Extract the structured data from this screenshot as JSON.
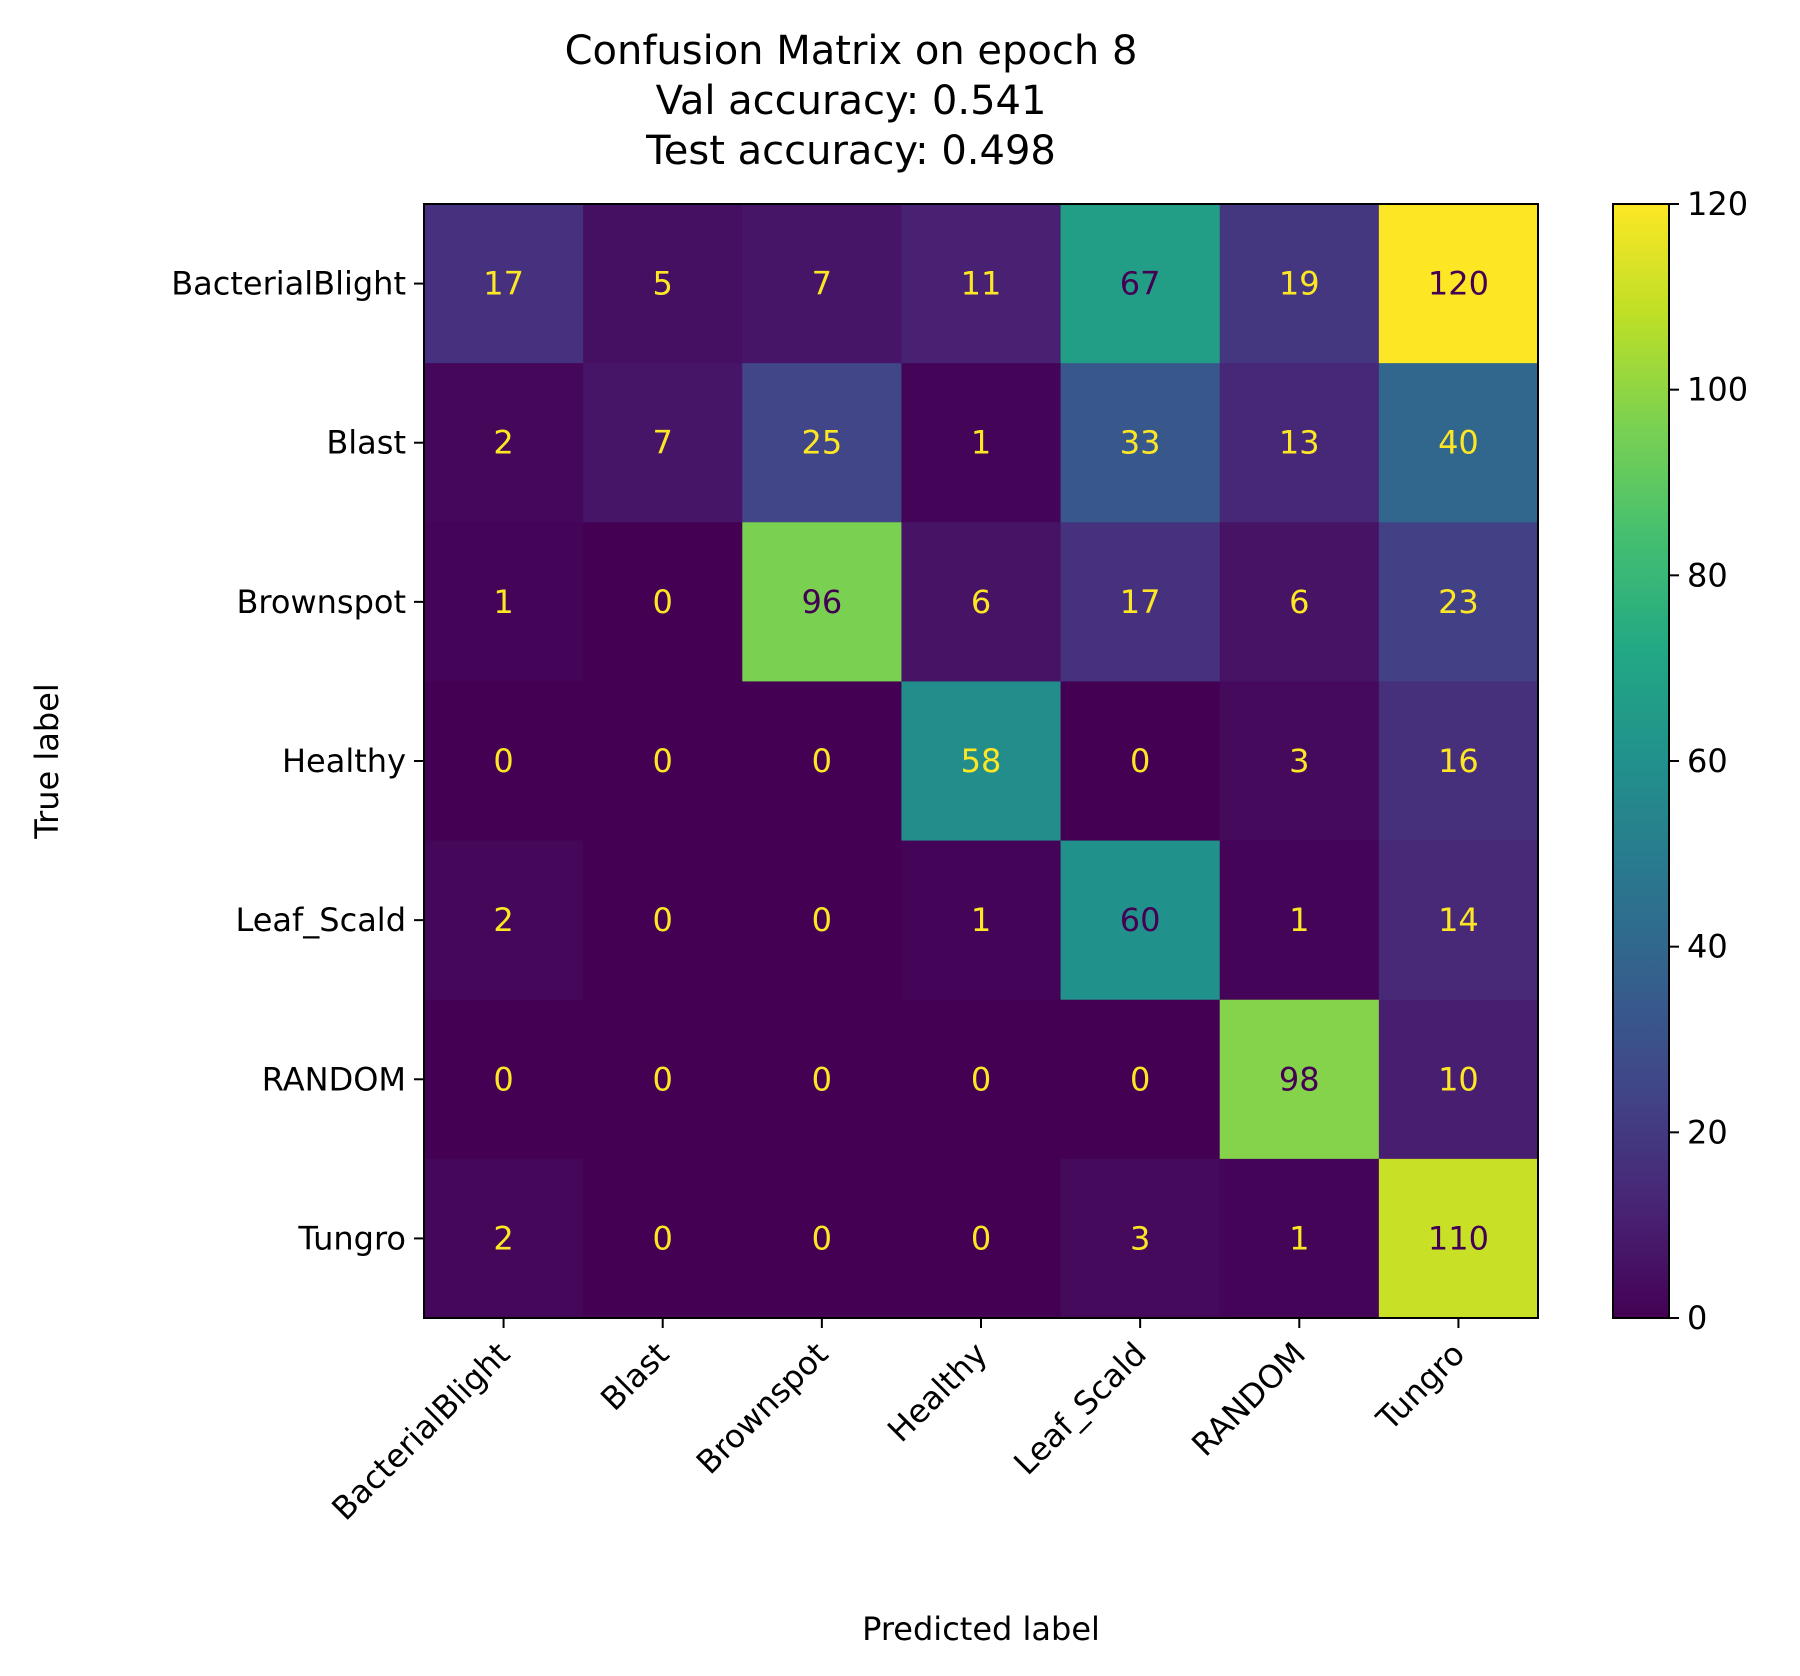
{
  "chart_data": {
    "type": "heatmap",
    "title_lines": [
      "Confusion Matrix on epoch 8",
      "Val accuracy: 0.541",
      "Test accuracy: 0.498"
    ],
    "xlabel": "Predicted label",
    "ylabel": "True label",
    "row_labels": [
      "BacterialBlight",
      "Blast",
      "Brownspot",
      "Healthy",
      "Leaf_Scald",
      "RANDOM",
      "Tungro"
    ],
    "col_labels": [
      "BacterialBlight",
      "Blast",
      "Brownspot",
      "Healthy",
      "Leaf_Scald",
      "RANDOM",
      "Tungro"
    ],
    "values": [
      [
        17,
        5,
        7,
        11,
        67,
        19,
        120
      ],
      [
        2,
        7,
        25,
        1,
        33,
        13,
        40
      ],
      [
        1,
        0,
        96,
        6,
        17,
        6,
        23
      ],
      [
        0,
        0,
        0,
        58,
        0,
        3,
        16
      ],
      [
        2,
        0,
        0,
        1,
        60,
        1,
        14
      ],
      [
        0,
        0,
        0,
        0,
        0,
        98,
        10
      ],
      [
        2,
        0,
        0,
        0,
        3,
        1,
        110
      ]
    ],
    "colormap": "viridis",
    "vmin": 0,
    "vmax": 120,
    "colorbar_ticks": [
      0,
      20,
      40,
      60,
      80,
      100,
      120
    ],
    "text_color_dark": "#440154",
    "text_color_light": "#fde725"
  }
}
